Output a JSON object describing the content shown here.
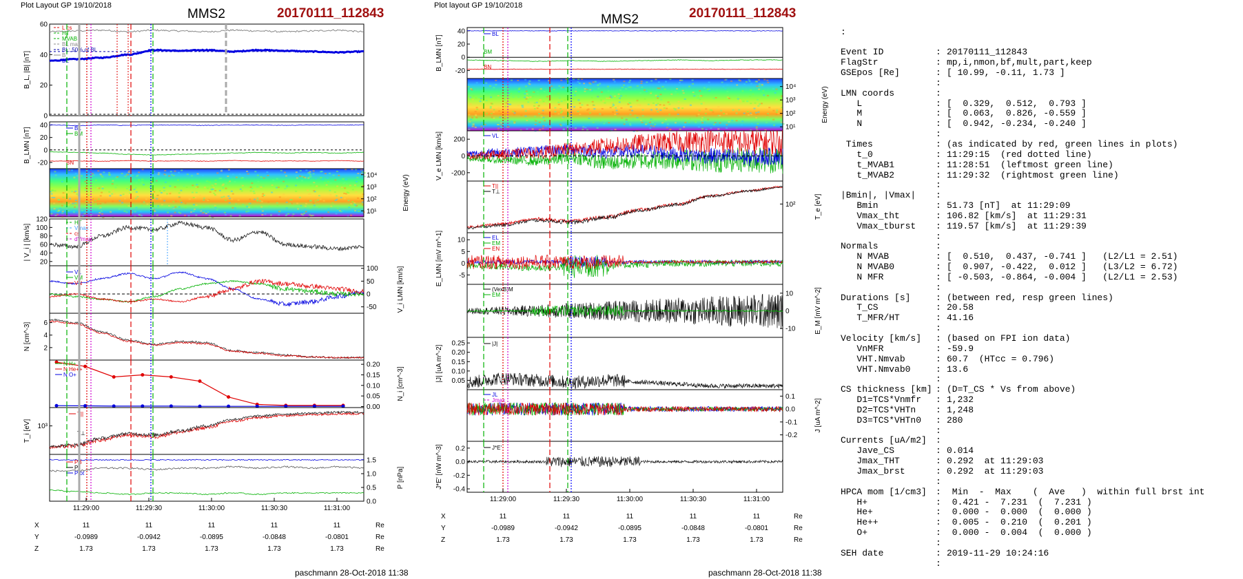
{
  "left": {
    "layout_label": "Plot Layout GP 19/10/2018",
    "spacecraft": "MMS2",
    "event": "20170111_112843",
    "footer": "paschmann 28-Oct-2018 11:38"
  },
  "right": {
    "layout_label": "Plot layout GP 19/10/2018",
    "spacecraft": "MMS2",
    "event": "20170111_112843",
    "footer": "paschmann 28-Oct-2018 11:38"
  },
  "time_ticks": [
    "11:29:00",
    "11:29:30",
    "11:30:00",
    "11:30:30",
    "11:31:00"
  ],
  "position_table": {
    "rows": [
      {
        "label": "X",
        "values": [
          "11",
          "11",
          "11",
          "11",
          "11"
        ],
        "unit": "Re"
      },
      {
        "label": "Y",
        "values": [
          "-0.0989",
          "-0.0942",
          "-0.0895",
          "-0.0848",
          "-0.0801"
        ],
        "unit": "Re"
      },
      {
        "label": "Z",
        "values": [
          "1.73",
          "1.73",
          "1.73",
          "1.73",
          "1.73"
        ],
        "unit": "Re"
      }
    ]
  },
  "colors": {
    "event": "#a01010",
    "bl": "#0000e0",
    "bm": "#00b000",
    "bn": "#e00000",
    "grey": "#888888"
  },
  "chart_data": [
    {
      "type": "line",
      "title": "MMS2 20170111_112843",
      "x_ticks": [
        "11:29:00",
        "11:29:30",
        "11:30:00",
        "11:30:30",
        "11:31:00"
      ],
      "panels": [
        {
          "ylabel": "B_L, |B| [nT]",
          "yticks": [
            "60",
            "40",
            "20",
            "0"
          ],
          "legend": [
            "L cs",
            "HT",
            "MVAB",
            "BL max",
            "BL: 50% of BL",
            "B",
            "BL"
          ],
          "series": [
            {
              "name": "|B|",
              "values": [
                55,
                55.5,
                56,
                55,
                56,
                55.5,
                55,
                56,
                55.5,
                55,
                55.5,
                56,
                55
              ]
            },
            {
              "name": "BL",
              "values": [
                36,
                37,
                38,
                40,
                43,
                42.5,
                43,
                42,
                43,
                42.5,
                42,
                41.5,
                42
              ]
            }
          ]
        },
        {
          "ylabel": "B_LMN [nT]",
          "yticks": [
            "40",
            "20",
            "0",
            "-20"
          ],
          "legend": [
            "BL",
            "BM",
            "BN"
          ],
          "series": [
            {
              "name": "BL",
              "values": [
                40,
                39,
                40,
                39.5,
                40,
                40,
                39.5,
                40,
                40,
                39.5,
                40,
                40,
                40
              ]
            },
            {
              "name": "BM",
              "values": [
                -3,
                -4,
                -5,
                -7,
                -8,
                -7,
                -6,
                -5,
                -4,
                -5,
                -4,
                -5,
                -4
              ]
            },
            {
              "name": "BN",
              "values": [
                -18,
                -17.5,
                -18,
                -17,
                -18,
                -17.5,
                -18,
                -17,
                -18,
                -17.5,
                -18,
                -17,
                -18
              ]
            }
          ]
        },
        {
          "ylabel": "Energy (eV)",
          "yticks": [
            "10^4",
            "10^3",
            "10^2",
            "10^1"
          ],
          "spectrogram": true
        },
        {
          "ylabel": "| V_i | [km/s]",
          "yticks": [
            "120",
            "100",
            "80",
            "60",
            "40",
            "20"
          ],
          "legend": [
            "HT",
            "Vmax",
            "cs",
            "dVmax"
          ],
          "series": [
            {
              "name": "|Vi|",
              "values": [
                60,
                55,
                80,
                100,
                95,
                110,
                100,
                70,
                90,
                60,
                55,
                50,
                55
              ]
            }
          ]
        },
        {
          "ylabel": "V_i LMN [km/s]",
          "yticks": [
            "100",
            "50",
            "0",
            "-50"
          ],
          "legend": [
            "VL",
            "VM",
            "VN"
          ],
          "series": [
            {
              "name": "VL",
              "values": [
                50,
                40,
                60,
                80,
                60,
                85,
                60,
                20,
                -20,
                -40,
                -30,
                -10,
                10
              ]
            },
            {
              "name": "VM",
              "values": [
                0,
                -10,
                -20,
                -30,
                -10,
                20,
                40,
                50,
                40,
                20,
                10,
                0,
                0
              ]
            },
            {
              "name": "VN",
              "values": [
                -10,
                0,
                -20,
                -30,
                -20,
                -30,
                -10,
                20,
                50,
                40,
                30,
                20,
                10
              ]
            }
          ]
        },
        {
          "ylabel": "N [cm^-3]",
          "yticks": [
            "6",
            "4",
            "2"
          ],
          "series": [
            {
              "name": "Ni",
              "values": [
                6.5,
                6,
                4.5,
                3.2,
                2.5,
                3,
                2.8,
                1.5,
                1.2,
                0.8,
                0.5,
                0.4,
                0.4
              ]
            },
            {
              "name": "Ne",
              "values": [
                6.2,
                5.8,
                4.3,
                3,
                2.4,
                2.8,
                2.6,
                1.4,
                1.1,
                0.7,
                0.5,
                0.4,
                0.4
              ]
            }
          ]
        },
        {
          "ylabel": "N_i [cm^-3]",
          "yticks": [
            "0.20",
            "0.15",
            "0.10",
            "0.05",
            "0.00"
          ],
          "legend": [
            "N H+",
            "N He++",
            "N O+"
          ],
          "series": [
            {
              "name": "N He++",
              "values": [
                0.21,
                0.19,
                0.14,
                0.15,
                0.14,
                0.12,
                0.045,
                0.01,
                0.005,
                0.005,
                0.005
              ]
            },
            {
              "name": "N O+",
              "values": [
                0.004,
                0.003,
                0.002,
                0.002,
                0.002,
                0.001,
                0.001,
                0.001,
                0.001,
                0.001,
                0.001
              ]
            }
          ]
        },
        {
          "ylabel": "T_i [eV]",
          "yticks": [
            "10^3"
          ],
          "legend": [
            "T||",
            "T⊥"
          ],
          "series": [
            {
              "name": "T||",
              "values": [
                300,
                320,
                450,
                600,
                550,
                700,
                900,
                1300,
                1600,
                1800,
                1900,
                2000,
                2000
              ]
            },
            {
              "name": "T⊥",
              "values": [
                320,
                340,
                500,
                650,
                600,
                760,
                1000,
                1450,
                1750,
                1950,
                2050,
                2150,
                2150
              ]
            }
          ]
        },
        {
          "ylabel": "P [nPa]",
          "yticks": [
            "1.5",
            "1.0",
            "0.5",
            "0.0"
          ],
          "legend": [
            "PB",
            "Pi",
            "Ptot"
          ],
          "series": [
            {
              "name": "PB",
              "values": [
                1.5,
                1.5,
                1.5,
                1.5,
                1.5,
                1.5,
                1.5,
                1.5,
                1.5,
                1.5,
                1.5,
                1.5,
                1.5
              ]
            },
            {
              "name": "Pi",
              "values": [
                1.1,
                1.1,
                1.2,
                1.2,
                1.15,
                1.2,
                1.2,
                1.25,
                1.2,
                1.25,
                1.2,
                1.25,
                1.2
              ]
            },
            {
              "name": "Ptot",
              "values": [
                0.4,
                0.35,
                0.3,
                0.25,
                0.3,
                0.3,
                0.25,
                0.3,
                0.25,
                0.3,
                0.3,
                0.3,
                0.3
              ]
            }
          ]
        }
      ]
    },
    {
      "type": "line",
      "title": "MMS2 20170111_112843",
      "x_ticks": [
        "11:29:00",
        "11:29:30",
        "11:30:00",
        "11:30:30",
        "11:31:00"
      ],
      "panels": [
        {
          "ylabel": "B_LMN [nT]",
          "yticks": [
            "40",
            "20",
            "0",
            "-20"
          ],
          "legend": [
            "BL",
            "BM",
            "BN"
          ],
          "series": [
            {
              "name": "BL",
              "values": [
                40,
                40,
                40,
                40,
                40,
                40,
                40,
                40,
                40,
                40
              ]
            },
            {
              "name": "BM",
              "values": [
                -4,
                -5,
                -6,
                -5,
                -6,
                -5,
                -4,
                -5,
                -4,
                -4
              ]
            },
            {
              "name": "BN",
              "values": [
                -18,
                -18,
                -18,
                -18,
                -18,
                -18,
                -18,
                -18,
                -18,
                -18
              ]
            }
          ]
        },
        {
          "ylabel": "Energy (eV)",
          "yticks": [
            "10^4",
            "10^3",
            "10^2",
            "10^1"
          ],
          "spectrogram": true
        },
        {
          "ylabel": "V_e LMN [km/s]",
          "yticks": [
            "200",
            "0",
            "-200"
          ],
          "legend": [
            "VL"
          ],
          "series": [
            {
              "name": "VeL",
              "values": [
                20,
                40,
                60,
                80,
                40,
                60,
                20,
                0,
                -20,
                0
              ]
            },
            {
              "name": "VeM",
              "values": [
                -30,
                -50,
                -60,
                -20,
                -80,
                -50,
                -40,
                -60,
                -40,
                -50
              ]
            },
            {
              "name": "VeN",
              "values": [
                0,
                20,
                40,
                80,
                120,
                150,
                170,
                180,
                160,
                170
              ]
            }
          ]
        },
        {
          "ylabel": "T_e [eV]",
          "yticks": [
            "10^2"
          ],
          "legend": [
            "T||",
            "T⊥"
          ],
          "series": [
            {
              "name": "Te||",
              "values": [
                40,
                45,
                55,
                50,
                60,
                80,
                100,
                140,
                170,
                200
              ]
            },
            {
              "name": "Te⊥",
              "values": [
                38,
                43,
                52,
                48,
                58,
                78,
                98,
                138,
                168,
                198
              ]
            }
          ]
        },
        {
          "ylabel": "E_LMN [mV m^-1]",
          "yticks": [
            "10",
            "5",
            "0",
            "-5"
          ],
          "legend": [
            "EL",
            "EM",
            "EN"
          ]
        },
        {
          "ylabel": "E_M [mV m^-2]",
          "yticks": [
            "10",
            "0",
            "-10"
          ],
          "legend": [
            "(VexB)M",
            "EM"
          ]
        },
        {
          "ylabel": "|J| [uA m^-2]",
          "yticks": [
            "0.25",
            "0.20",
            "0.15",
            "0.10",
            "0.05"
          ],
          "legend": [
            "|J|"
          ]
        },
        {
          "ylabel": "J [uA m^-2]",
          "yticks": [
            "0.1",
            "0.0",
            "-0.1",
            "-0.2"
          ],
          "legend": [
            "JL",
            "Jmax"
          ]
        },
        {
          "ylabel": "J*E' [nW m^-3]",
          "yticks": [
            "0.2",
            "0.0",
            "-0.2",
            "-0.4"
          ],
          "legend": [
            "J*E'"
          ]
        }
      ]
    }
  ],
  "info": [
    {
      "k": "Event ID",
      "v": "20170111_112843"
    },
    {
      "k": "FlagStr",
      "v": "mp,i,nmon,bf,mult,part,keep"
    },
    {
      "k": "GSEpos [Re]",
      "v": "[ 10.99, -0.11, 1.73 ]"
    },
    {
      "k": "",
      "v": ""
    },
    {
      "k": "LMN coords",
      "v": ""
    },
    {
      "k": "   L",
      "v": "[  0.329,  0.512,  0.793 ]"
    },
    {
      "k": "   M",
      "v": "[  0.063,  0.826, -0.559 ]"
    },
    {
      "k": "   N",
      "v": "[  0.942, -0.234, -0.240 ]"
    },
    {
      "k": "",
      "v": ""
    },
    {
      "k": " Times",
      "v": "(as indicated by red, green lines in plots)"
    },
    {
      "k": "   t_0",
      "v": "11:29:15  (red dotted line)"
    },
    {
      "k": "   t_MVAB1",
      "v": "11:28:51  (leftmost green line)"
    },
    {
      "k": "   t_MVAB2",
      "v": "11:29:32  (rightmost green line)"
    },
    {
      "k": "",
      "v": ""
    },
    {
      "k": "|Bmin|, |Vmax|",
      "v": ""
    },
    {
      "k": "   Bmin",
      "v": "51.73 [nT]  at 11:29:09"
    },
    {
      "k": "   Vmax_tht",
      "v": "106.82 [km/s]  at 11:29:31"
    },
    {
      "k": "   Vmax_tburst",
      "v": "119.57 [km/s]  at 11:29:39"
    },
    {
      "k": "",
      "v": ""
    },
    {
      "k": "Normals",
      "v": ""
    },
    {
      "k": "   N MVAB",
      "v": "[  0.510,  0.437, -0.741 ]   (L2/L1 = 2.51)"
    },
    {
      "k": "   N MVAB0",
      "v": "[  0.907, -0.422,  0.012 ]   (L3/L2 = 6.72)"
    },
    {
      "k": "   N MFR",
      "v": "[ -0.503, -0.864, -0.004 ]   (L2/L1 = 2.53)"
    },
    {
      "k": "",
      "v": ""
    },
    {
      "k": "Durations [s]",
      "v": "(between red, resp green lines)"
    },
    {
      "k": "   T_CS",
      "v": "20.58"
    },
    {
      "k": "   T_MFR/HT",
      "v": "41.16"
    },
    {
      "k": "",
      "v": ""
    },
    {
      "k": "Velocity [km/s]",
      "v": "(based on FPI ion data)"
    },
    {
      "k": "   VnMFR",
      "v": "-59.9"
    },
    {
      "k": "   VHT.Nmvab",
      "v": "60.7  (HTcc = 0.796)"
    },
    {
      "k": "   VHT.Nmvab0",
      "v": "13.6"
    },
    {
      "k": "",
      "v": ""
    },
    {
      "k": "CS thickness [km]",
      "v": "(D=T_CS * Vs from above)"
    },
    {
      "k": "   D1=TCS*Vnmfr",
      "v": "1,232"
    },
    {
      "k": "   D2=TCS*VHTn",
      "v": "1,248"
    },
    {
      "k": "   D3=TCS*VHTn0",
      "v": "280"
    },
    {
      "k": "",
      "v": ""
    },
    {
      "k": "Currents [uA/m2]",
      "v": ""
    },
    {
      "k": "   Jave_CS",
      "v": "0.014"
    },
    {
      "k": "   Jmax_THT",
      "v": "0.292  at 11:29:03"
    },
    {
      "k": "   Jmax_brst",
      "v": "0.292  at 11:29:03"
    },
    {
      "k": "",
      "v": ""
    },
    {
      "k": "HPCA mom [1/cm3]",
      "v": " Min  -  Max    (  Ave   )  within full brst int"
    },
    {
      "k": "   H+",
      "v": " 0.421 -  7.231  (  7.231 )"
    },
    {
      "k": "   He+",
      "v": " 0.000 -  0.000  (  0.000 )"
    },
    {
      "k": "   He++",
      "v": " 0.005 -  0.210  (  0.201 )"
    },
    {
      "k": "   O+",
      "v": " 0.000 -  0.004  (  0.000 )"
    },
    {
      "k": "",
      "v": ""
    },
    {
      "k": "SEH date",
      "v": "2019-11-29 10:24:16"
    },
    {
      "k": "",
      "v": ""
    }
  ]
}
